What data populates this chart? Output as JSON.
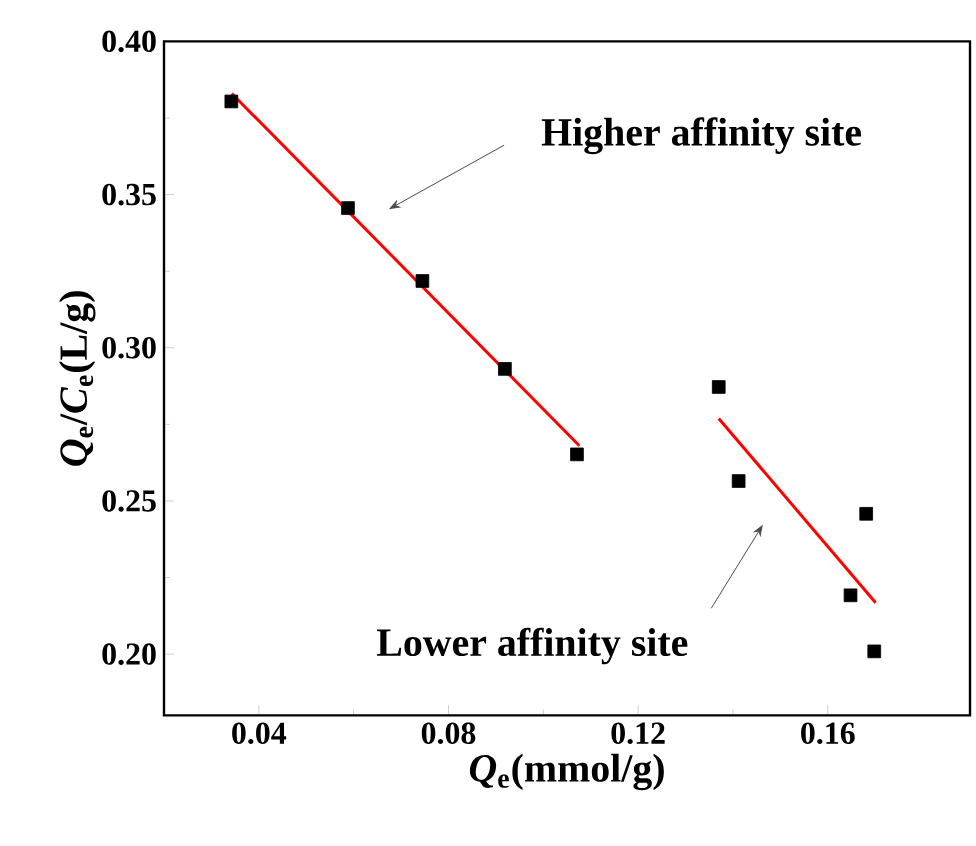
{
  "chart_data": {
    "type": "scatter",
    "xlabel": "*Q*$_{e}$(mmol/g)",
    "ylabel": "*Q*$_{e}$/*C*$_{e}$(L/g)",
    "xlim": [
      0.02,
      0.19
    ],
    "ylim": [
      0.18,
      0.4
    ],
    "xticks": [
      0.04,
      0.08,
      0.12,
      0.16
    ],
    "yticks": [
      {
        "value": 0.2,
        "label": "0.20"
      },
      {
        "value": 0.25,
        "label": "0.25"
      },
      {
        "value": 0.3,
        "label": "0.30"
      },
      {
        "value": 0.35,
        "label": "0.35"
      },
      {
        "value": 0.4,
        "label": "0.40"
      }
    ],
    "grid": false,
    "series": [
      {
        "marker": "square",
        "color": "#000000",
        "x": [
          0.0342,
          0.0588,
          0.0745,
          0.0919,
          0.1071,
          0.137,
          0.1412,
          0.1648,
          0.1681,
          0.1698
        ],
        "values": [
          0.3804,
          0.3456,
          0.3218,
          0.2931,
          0.2652,
          0.2872,
          0.2565,
          0.2192,
          0.2458,
          0.2009
        ]
      },
      {
        "type": "line",
        "color": "#ff0000",
        "x": [
          0.0343,
          0.1076
        ],
        "values": [
          0.383,
          0.268
        ]
      },
      {
        "type": "line",
        "color": "#ff0000",
        "x": [
          0.137,
          0.1701
        ],
        "values": [
          0.2769,
          0.2168
        ]
      }
    ],
    "annotations": [
      "Higher affinity site",
      "Lower affinity site"
    ]
  }
}
